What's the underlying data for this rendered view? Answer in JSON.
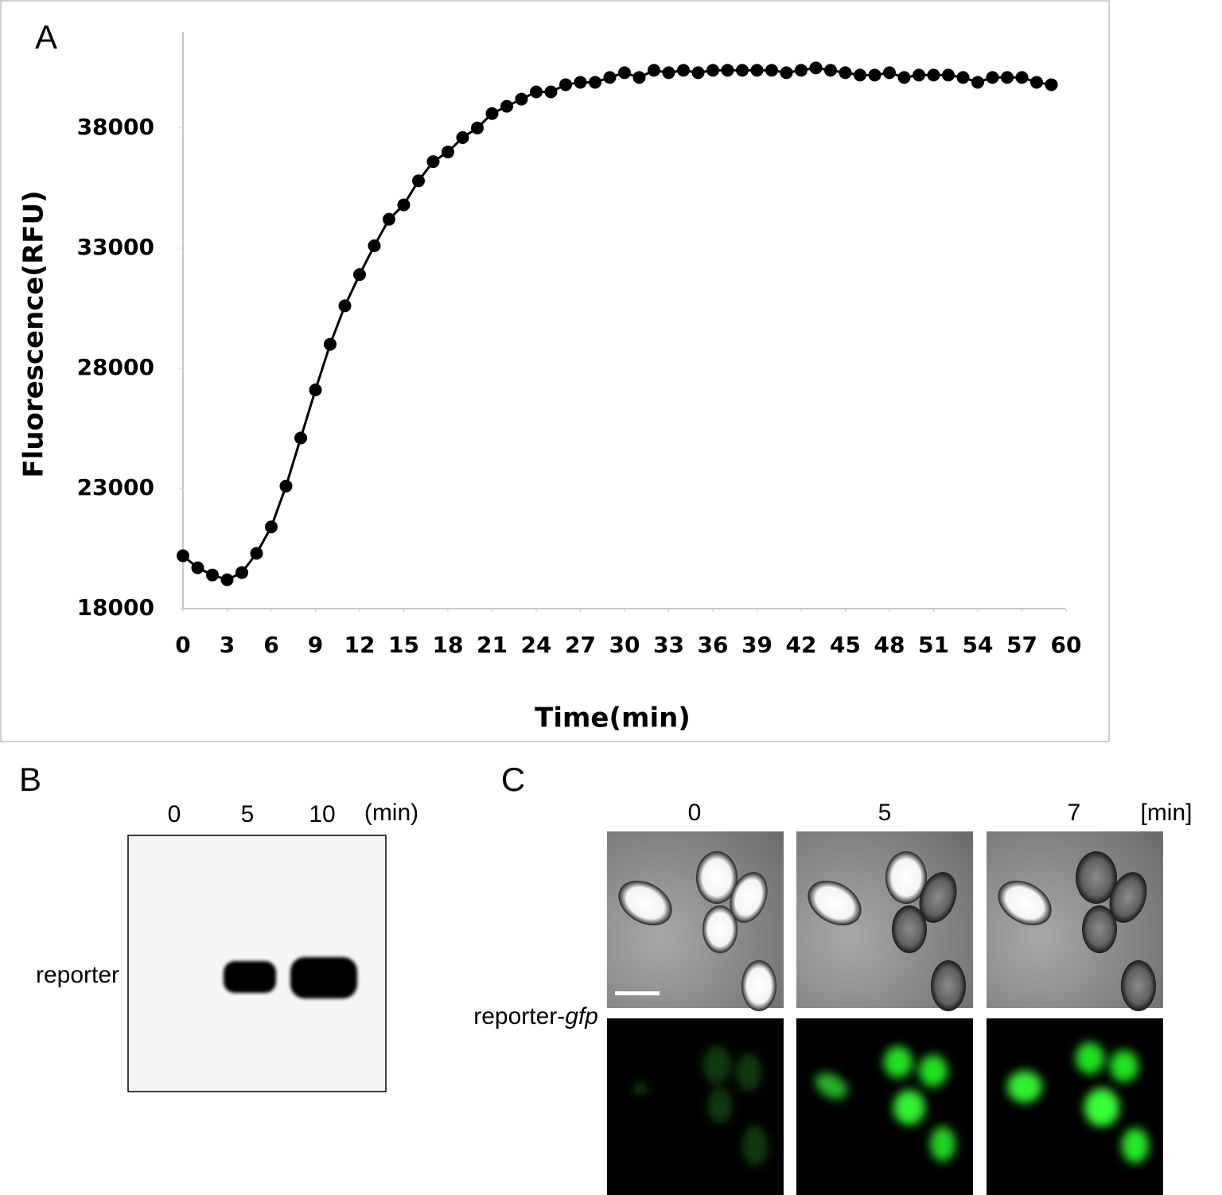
{
  "chart_data": {
    "type": "line",
    "panel_label": "A",
    "x_label": "Time(min)",
    "y_label": "Fluorescence(RFU)",
    "color": "#000000",
    "markers": true,
    "grid": false,
    "x": [
      0,
      1,
      2,
      3,
      4,
      5,
      6,
      7,
      8,
      9,
      10,
      11,
      12,
      13,
      14,
      15,
      16,
      17,
      18,
      19,
      20,
      21,
      22,
      23,
      24,
      25,
      26,
      27,
      28,
      29,
      30,
      31,
      32,
      33,
      34,
      35,
      36,
      37,
      38,
      39,
      40,
      41,
      42,
      43,
      44,
      45,
      46,
      47,
      48,
      49,
      50,
      51,
      52,
      53,
      54,
      55,
      56,
      57,
      58,
      59
    ],
    "values": [
      20200,
      19700,
      19400,
      19200,
      19500,
      20300,
      21400,
      23100,
      25100,
      27100,
      29000,
      30600,
      31900,
      33100,
      34200,
      34800,
      35800,
      36600,
      37000,
      37600,
      38000,
      38600,
      38900,
      39200,
      39500,
      39500,
      39800,
      39900,
      39900,
      40100,
      40300,
      40100,
      40400,
      40300,
      40400,
      40300,
      40400,
      40400,
      40400,
      40400,
      40400,
      40300,
      40400,
      40500,
      40400,
      40300,
      40200,
      40200,
      40300,
      40100,
      40200,
      40200,
      40200,
      40100,
      39900,
      40100,
      40100,
      40100,
      39900,
      39800
    ],
    "xlim": [
      0,
      60
    ],
    "xticks": [
      0,
      3,
      6,
      9,
      12,
      15,
      18,
      21,
      24,
      27,
      30,
      33,
      36,
      39,
      42,
      45,
      48,
      51,
      54,
      57,
      60
    ],
    "ylim": [
      18000,
      42000
    ],
    "yticks": [
      18000,
      23000,
      28000,
      33000,
      38000
    ]
  },
  "blot": {
    "panel_label": "B",
    "lanes": [
      "0",
      "5",
      "10"
    ],
    "unit": "(min)",
    "band_label": "reporter"
  },
  "microscopy": {
    "panel_label": "C",
    "timepoints": [
      "0",
      "5",
      "7"
    ],
    "unit": "[min]",
    "row_label_prefix": "reporter-",
    "row_label_gene": "gfp"
  }
}
